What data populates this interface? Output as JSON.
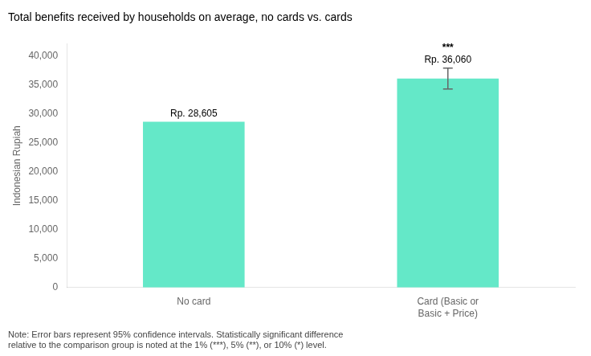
{
  "chart_data": {
    "type": "bar",
    "title": "Total benefits received by households on average, no cards vs. cards",
    "categories": [
      "No card",
      "Card (Basic or\nBasic + Price)"
    ],
    "values": [
      28605,
      36060
    ],
    "value_labels": [
      "Rp. 28,605",
      "Rp. 36,060"
    ],
    "data_labels": true,
    "error_bars": [
      null,
      1800
    ],
    "significance": [
      null,
      "***"
    ],
    "color": "#64E8C8",
    "ylabel": "Indonesian Rupiah",
    "ylim": [
      0,
      42000
    ],
    "yticks": [
      0,
      {
        "value": 5000,
        "label": "5,000"
      },
      {
        "value": 10000,
        "label": "10,000"
      },
      {
        "value": 15000,
        "label": "15,000"
      },
      {
        "value": 20000,
        "label": "20,000"
      },
      {
        "value": 25000,
        "label": "25,000"
      },
      {
        "value": 30000,
        "label": "30,000"
      },
      {
        "value": 35000,
        "label": "35,000"
      },
      {
        "value": 40000,
        "label": "40,000"
      }
    ],
    "grid": false,
    "note": "Note: Error bars represent 95% confidence intervals. Statistically significant difference\nrelative to the comparison group is noted at the 1% (***), 5% (**), or 10% (*) level."
  }
}
